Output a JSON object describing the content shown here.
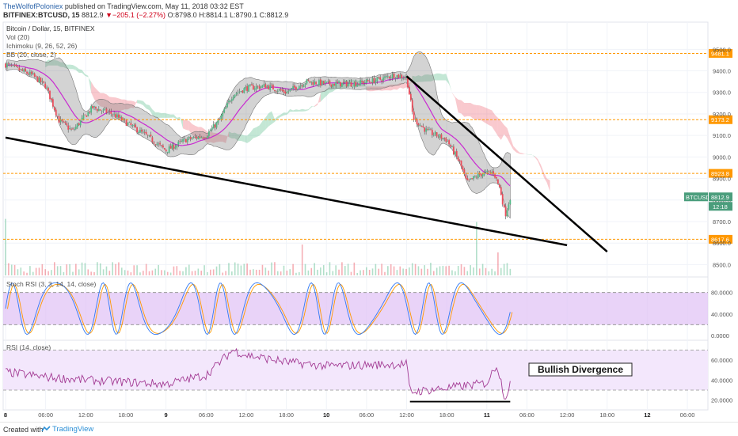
{
  "header": {
    "author": "TheWolfofPoloniex",
    "published": "published on TradingView.com, May 11, 2018 03:32 EST",
    "symbol": "BITFINEX:BTCUSD, 15",
    "last": "8812.9",
    "change": "−205.1 (−2.27%)",
    "ohlc": "O:8798.0 H:8814.1 L:8790.1 C:8812.9"
  },
  "legend": {
    "title": "Bitcoin / Dollar, 15, BITFINEX",
    "vol": "Vol (20)",
    "ichimoku": "Ichimoku (9, 26, 52, 26)",
    "bb": "BB (20, close, 2)"
  },
  "price_scale": {
    "ticks": [
      "9500.0",
      "9400.0",
      "9300.0",
      "9200.0",
      "9100.0",
      "9000.0",
      "8900.0",
      "8800.0",
      "8700.0",
      "8600.0",
      "8500.0"
    ],
    "tick_values": [
      9500,
      9400,
      9300,
      9200,
      9100,
      9000,
      8900,
      8800,
      8700,
      8600,
      8500
    ],
    "symbol_tag": "BTCUSD",
    "last_price": "8812.9",
    "countdown": "12:18"
  },
  "levels": [
    {
      "label": "9481.1",
      "value": 9481.1
    },
    {
      "label": "9173.2",
      "value": 9173.2
    },
    {
      "label": "8923.8",
      "value": 8923.8
    },
    {
      "label": "8617.6",
      "value": 8617.6
    }
  ],
  "stoch": {
    "title": "Stoch RSI (3, 3, 14, 14, close)",
    "ticks": [
      "80.0000",
      "40.0000",
      "0.0000"
    ],
    "tick_values": [
      80,
      40,
      0
    ]
  },
  "rsi": {
    "title": "RSI (14, close)",
    "ticks": [
      "60.0000",
      "40.0000",
      "20.0000"
    ],
    "tick_values": [
      60,
      40,
      20
    ],
    "annotation": "Bullish Divergence"
  },
  "time_axis": [
    "8",
    "06:00",
    "12:00",
    "18:00",
    "9",
    "06:00",
    "12:00",
    "18:00",
    "10",
    "06:00",
    "12:00",
    "18:00",
    "11",
    "06:00",
    "12:00",
    "18:00",
    "12",
    "06:00"
  ],
  "footer": {
    "created": "Created with",
    "brand": "TradingView"
  },
  "colors": {
    "up": "#53b987",
    "down": "#eb4d5c",
    "level": "#ff9800",
    "stoch_band": "#e1c4f5",
    "rsi_band": "#f3e7fc",
    "rsi_line": "#a33b94",
    "stoch_k": "#3179f5",
    "stoch_d": "#ff9800",
    "basis": "#c92ad1"
  },
  "chart_data": {
    "type": "candlestick",
    "x_range": [
      "May 8 00:00",
      "May 12 08:00"
    ],
    "y_range": [
      8450,
      9560
    ],
    "trendlines": [
      {
        "from": [
          "May 8 00:00",
          9090
        ],
        "to": [
          "May 11 12:00",
          8590
        ]
      },
      {
        "from": [
          "May 10 12:00",
          9375
        ],
        "to": [
          "May 11 18:00",
          8560
        ]
      }
    ],
    "price_path": [
      [
        "May 8 00:00",
        9430
      ],
      [
        "May 8 04:00",
        9380
      ],
      [
        "May 8 06:00",
        9330
      ],
      [
        "May 8 08:00",
        9170
      ],
      [
        "May 8 10:00",
        9120
      ],
      [
        "May 8 13:00",
        9230
      ],
      [
        "May 8 16:00",
        9200
      ],
      [
        "May 8 18:00",
        9160
      ],
      [
        "May 8 21:00",
        9100
      ],
      [
        "May 9 00:00",
        9030
      ],
      [
        "May 9 03:00",
        9080
      ],
      [
        "May 9 06:00",
        9100
      ],
      [
        "May 9 08:00",
        9170
      ],
      [
        "May 9 10:00",
        9290
      ],
      [
        "May 9 12:00",
        9320
      ],
      [
        "May 9 15:00",
        9330
      ],
      [
        "May 9 18:00",
        9300
      ],
      [
        "May 9 21:00",
        9350
      ],
      [
        "May 10 00:00",
        9340
      ],
      [
        "May 10 04:00",
        9340
      ],
      [
        "May 10 08:00",
        9360
      ],
      [
        "May 10 10:00",
        9380
      ],
      [
        "May 10 12:00",
        9370
      ],
      [
        "May 10 13:00",
        9180
      ],
      [
        "May 10 15:00",
        9120
      ],
      [
        "May 10 18:00",
        9080
      ],
      [
        "May 10 20:00",
        8970
      ],
      [
        "May 10 21:00",
        8880
      ],
      [
        "May 10 23:00",
        8920
      ],
      [
        "May 11 01:00",
        8930
      ],
      [
        "May 11 02:00",
        8850
      ],
      [
        "May 11 02:45",
        8730
      ],
      [
        "May 11 03:30",
        8813
      ]
    ],
    "stoch_rsi_range": [
      0,
      100
    ],
    "rsi_range": [
      15,
      75
    ],
    "rsi_path": [
      [
        "May 8 00:00",
        48
      ],
      [
        "May 8 06:00",
        43
      ],
      [
        "May 8 12:00",
        40
      ],
      [
        "May 8 18:00",
        38
      ],
      [
        "May 9 00:00",
        36
      ],
      [
        "May 9 06:00",
        45
      ],
      [
        "May 9 10:00",
        70
      ],
      [
        "May 9 12:00",
        65
      ],
      [
        "May 9 18:00",
        58
      ],
      [
        "May 10 00:00",
        54
      ],
      [
        "May 10 06:00",
        55
      ],
      [
        "May 10 12:00",
        56
      ],
      [
        "May 10 12:30",
        28
      ],
      [
        "May 10 18:00",
        32
      ],
      [
        "May 11 00:00",
        37
      ],
      [
        "May 11 01:30",
        56
      ],
      [
        "May 11 02:45",
        21
      ],
      [
        "May 11 03:30",
        38
      ]
    ]
  }
}
